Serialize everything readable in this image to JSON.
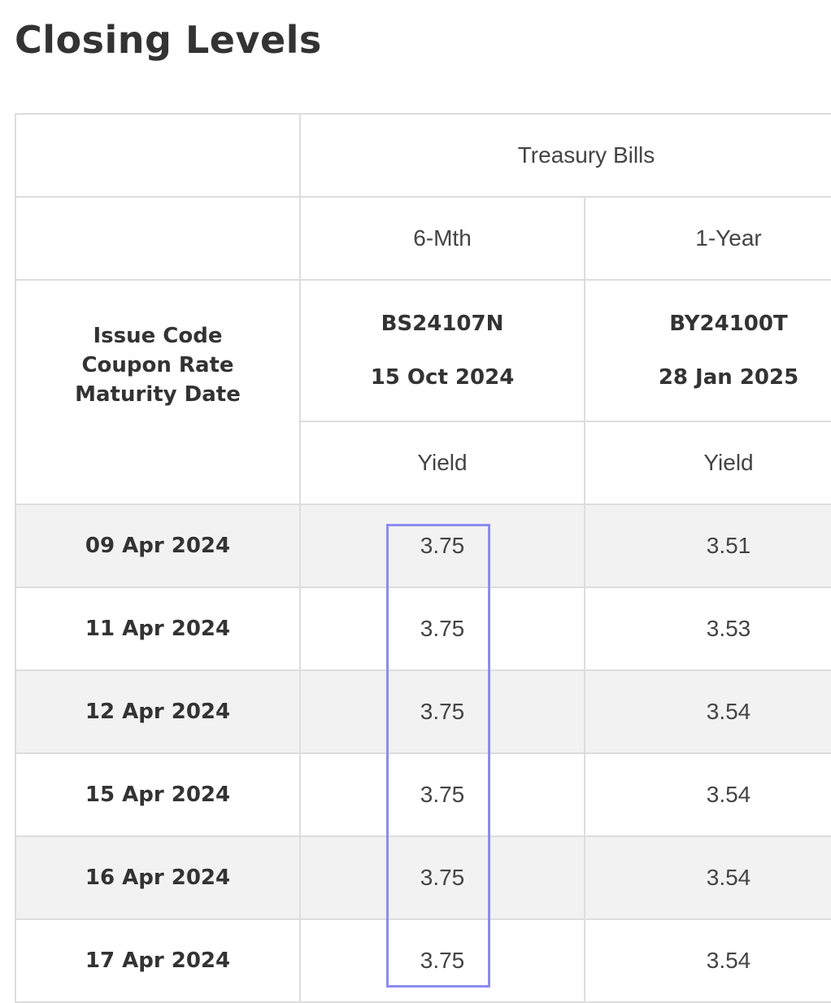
{
  "page": {
    "title": "Closing Levels"
  },
  "table": {
    "group_header": "Treasury Bills",
    "tenors": [
      "6-Mth",
      "1-Year"
    ],
    "spec_label": [
      "Issue Code",
      "Coupon Rate",
      "Maturity Date"
    ],
    "issues": [
      {
        "code": "BS24107N",
        "maturity": "15 Oct 2024"
      },
      {
        "code": "BY24100T",
        "maturity": "28 Jan 2025"
      }
    ],
    "measure_labels": [
      "Yield",
      "Yield"
    ],
    "rows": [
      {
        "date": "09 Apr 2024",
        "values": [
          "3.75",
          "3.51"
        ]
      },
      {
        "date": "11 Apr 2024",
        "values": [
          "3.75",
          "3.53"
        ]
      },
      {
        "date": "12 Apr 2024",
        "values": [
          "3.75",
          "3.54"
        ]
      },
      {
        "date": "15 Apr 2024",
        "values": [
          "3.75",
          "3.54"
        ]
      },
      {
        "date": "16 Apr 2024",
        "values": [
          "3.75",
          "3.54"
        ]
      },
      {
        "date": "17 Apr 2024",
        "values": [
          "3.75",
          "3.54"
        ]
      }
    ]
  },
  "colors": {
    "highlight_border": "#8c8cf0",
    "row_shade": "#f2f2f2",
    "grid_line": "#dddddd"
  }
}
